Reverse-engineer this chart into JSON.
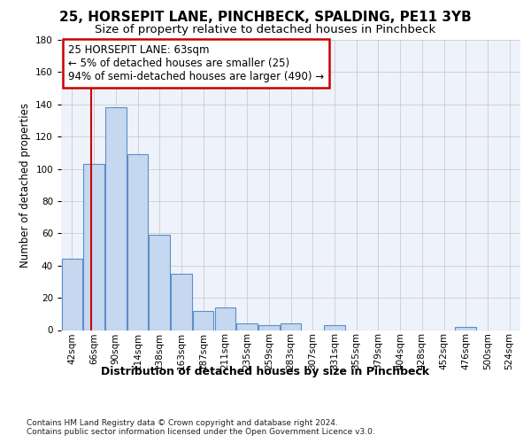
{
  "title_line1": "25, HORSEPIT LANE, PINCHBECK, SPALDING, PE11 3YB",
  "title_line2": "Size of property relative to detached houses in Pinchbeck",
  "xlabel": "Distribution of detached houses by size in Pinchbeck",
  "ylabel": "Number of detached properties",
  "categories": [
    "42sqm",
    "66sqm",
    "90sqm",
    "114sqm",
    "138sqm",
    "163sqm",
    "187sqm",
    "211sqm",
    "235sqm",
    "259sqm",
    "283sqm",
    "307sqm",
    "331sqm",
    "355sqm",
    "379sqm",
    "404sqm",
    "428sqm",
    "452sqm",
    "476sqm",
    "500sqm",
    "524sqm"
  ],
  "values": [
    44,
    103,
    138,
    109,
    59,
    35,
    12,
    14,
    4,
    3,
    4,
    0,
    3,
    0,
    0,
    0,
    0,
    0,
    2,
    0,
    0
  ],
  "bar_color": "#c5d8ef",
  "bar_edge_color": "#5b8fc9",
  "grid_color": "#cccccc",
  "bg_color": "#eef2fb",
  "annotation_box_color": "#cc0000",
  "annotation_text": "25 HORSEPIT LANE: 63sqm\n← 5% of detached houses are smaller (25)\n94% of semi-detached houses are larger (490) →",
  "marker_line_color": "#cc0000",
  "ylim": [
    0,
    180
  ],
  "yticks": [
    0,
    20,
    40,
    60,
    80,
    100,
    120,
    140,
    160,
    180
  ],
  "footnote": "Contains HM Land Registry data © Crown copyright and database right 2024.\nContains public sector information licensed under the Open Government Licence v3.0.",
  "title1_fontsize": 11,
  "title2_fontsize": 9.5,
  "ylabel_fontsize": 8.5,
  "xlabel_fontsize": 9,
  "tick_fontsize": 7.5,
  "annot_fontsize": 8.5,
  "footnote_fontsize": 6.5
}
